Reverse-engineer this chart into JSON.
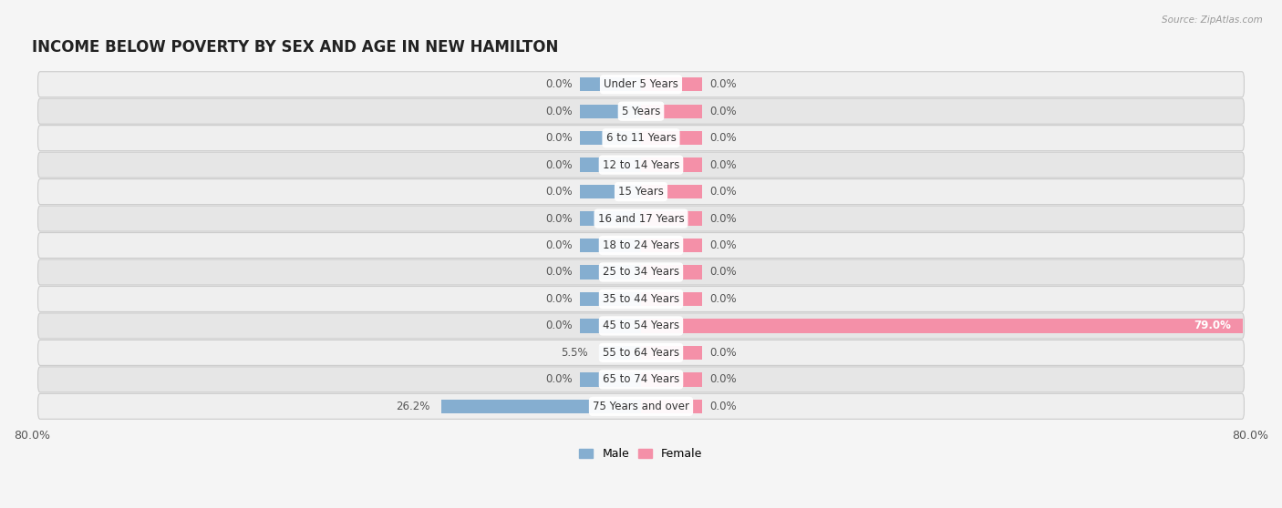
{
  "title": "INCOME BELOW POVERTY BY SEX AND AGE IN NEW HAMILTON",
  "source": "Source: ZipAtlas.com",
  "categories": [
    "Under 5 Years",
    "5 Years",
    "6 to 11 Years",
    "12 to 14 Years",
    "15 Years",
    "16 and 17 Years",
    "18 to 24 Years",
    "25 to 34 Years",
    "35 to 44 Years",
    "45 to 54 Years",
    "55 to 64 Years",
    "65 to 74 Years",
    "75 Years and over"
  ],
  "male_values": [
    0.0,
    0.0,
    0.0,
    0.0,
    0.0,
    0.0,
    0.0,
    0.0,
    0.0,
    0.0,
    5.5,
    0.0,
    26.2
  ],
  "female_values": [
    0.0,
    0.0,
    0.0,
    0.0,
    0.0,
    0.0,
    0.0,
    0.0,
    0.0,
    79.0,
    0.0,
    0.0,
    0.0
  ],
  "male_color": "#85aed0",
  "female_color": "#f490a8",
  "male_label": "Male",
  "female_label": "Female",
  "xlim": 80.0,
  "bar_height": 0.52,
  "zero_bar_width": 8.0,
  "title_fontsize": 12,
  "label_fontsize": 9,
  "axis_label_fontsize": 9,
  "value_fontsize": 8.5,
  "category_fontsize": 8.5,
  "background_color": "#f5f5f5",
  "row_color_light": "#eeeeee",
  "row_color_dark": "#e4e4e4"
}
